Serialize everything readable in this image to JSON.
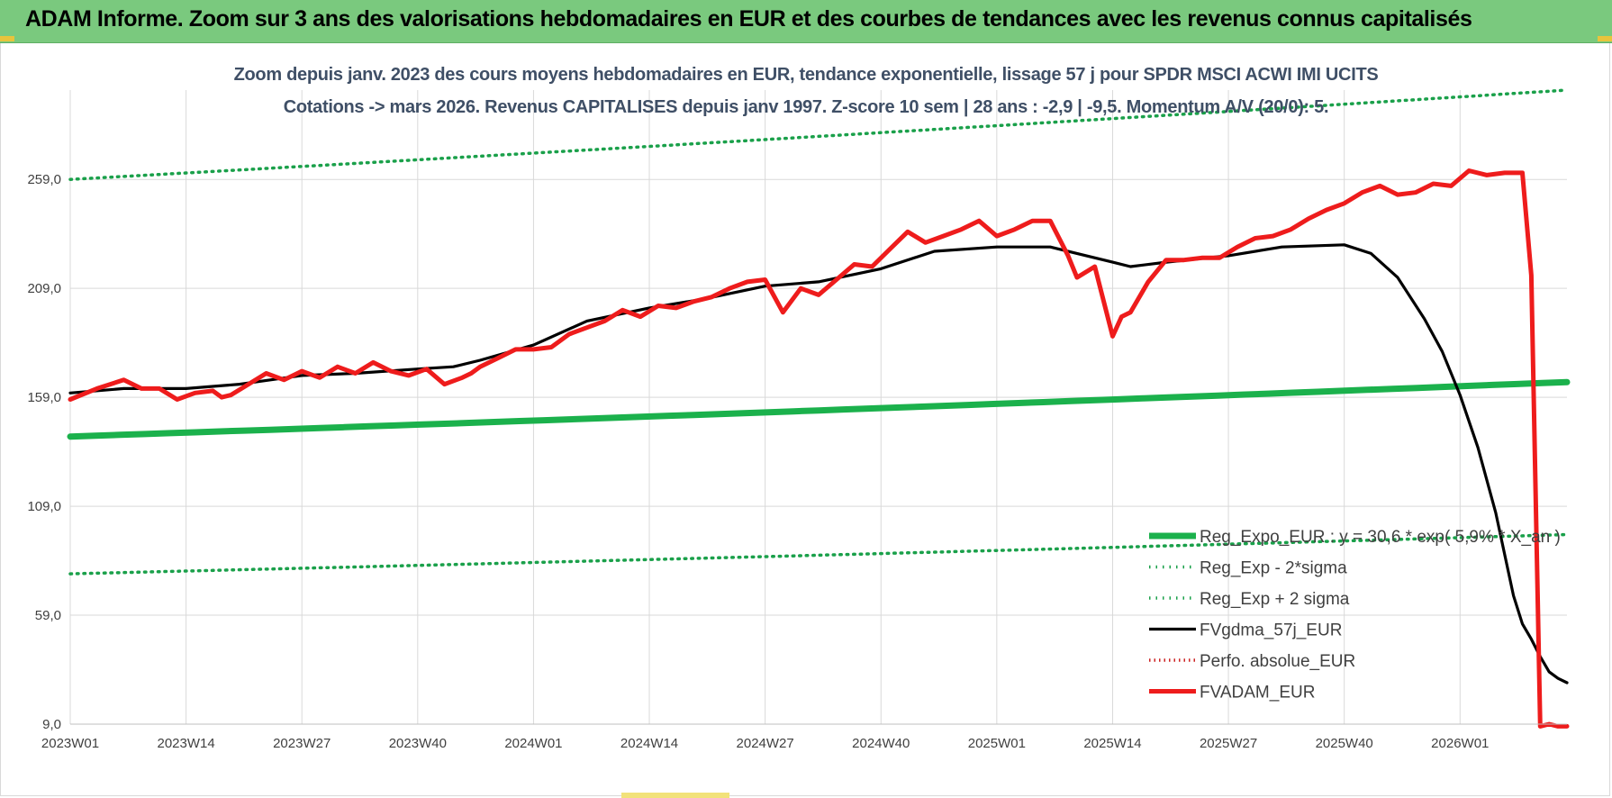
{
  "banner": {
    "title": "ADAM Informe. Zoom sur 3 ans des valorisations hebdomadaires en EUR et des courbes de tendances avec les revenus connus capitalisés"
  },
  "colors": {
    "banner": "#7ac97e",
    "reg_expo": "#1bb14c",
    "bands": "#1aa04a",
    "fvgdma": "#000000",
    "fvadam": "#ee1c1c",
    "perfo": "#cc2222",
    "grid": "#d9d9d9",
    "title_text": "#3f4f66"
  },
  "chart_data": {
    "type": "line",
    "title_line1": "Zoom depuis janv. 2023 des cours moyens hebdomadaires en EUR, tendance exponentielle, lissage 57 j pour SPDR MSCI ACWI IMI UCITS",
    "title_line2": "Cotations -> mars 2026. Revenus CAPITALISES depuis janv 1997. Z-score 10 sem | 28 ans : -2,9 | -9,5. Momentum A/V (20/0): 5.",
    "x_tick_labels": [
      "2023W01",
      "2023W14",
      "2023W27",
      "2023W40",
      "2024W01",
      "2024W14",
      "2024W27",
      "2024W40",
      "2025W01",
      "2025W14",
      "2025W27",
      "2025W40",
      "2026W01"
    ],
    "x_tick_index": [
      0,
      13,
      26,
      39,
      52,
      65,
      78,
      91,
      104,
      117,
      130,
      143,
      156
    ],
    "x_range": [
      0,
      168
    ],
    "y_tick_values": [
      9,
      59,
      109,
      159,
      209,
      259
    ],
    "y_tick_labels": [
      "9,0",
      "59,0",
      "109,0",
      "159,0",
      "209,0",
      "259,0"
    ],
    "ylim": [
      9,
      300
    ],
    "grid": true,
    "legend_position": "bottom-right",
    "series": [
      {
        "name": "Reg_Expo_EUR : y = 30,6 * exp( 5,9% * X_an )",
        "style": "solid-thick",
        "x": [
          0,
          168
        ],
        "y": [
          141,
          166
        ]
      },
      {
        "name": "Reg_Exp - 2*sigma",
        "style": "dotted",
        "x": [
          0,
          168
        ],
        "y": [
          78,
          96
        ]
      },
      {
        "name": "Reg_Exp + 2 sigma",
        "style": "dotted",
        "x": [
          0,
          168
        ],
        "y": [
          259,
          300
        ]
      },
      {
        "name": "FVgdma_57j_EUR",
        "style": "solid",
        "x": [
          0,
          6,
          13,
          19,
          26,
          32,
          39,
          43,
          46,
          52,
          58,
          65,
          71,
          78,
          84,
          91,
          97,
          104,
          110,
          113,
          117,
          119,
          123,
          130,
          136,
          143,
          146,
          149,
          152,
          154,
          156,
          158,
          160,
          162,
          163,
          164,
          165,
          166,
          167,
          168
        ],
        "y": [
          161,
          163,
          163,
          165,
          169,
          170,
          172,
          173,
          176,
          183,
          194,
          200,
          204,
          210,
          212,
          218,
          226,
          228,
          228,
          225,
          221,
          219,
          221,
          224,
          228,
          229,
          225,
          214,
          195,
          180,
          160,
          136,
          106,
          68,
          55,
          48,
          40,
          33,
          30,
          28
        ]
      },
      {
        "name": "Perfo. absolue_EUR",
        "style": "dotted",
        "x": [],
        "y": []
      },
      {
        "name": "FVADAM_EUR",
        "style": "solid-thick",
        "x": [
          0,
          3,
          6,
          8,
          10,
          12,
          14,
          16,
          17,
          18,
          20,
          22,
          24,
          26,
          28,
          30,
          32,
          34,
          36,
          38,
          40,
          42,
          44,
          45,
          46,
          48,
          50,
          52,
          54,
          56,
          58,
          60,
          62,
          64,
          66,
          68,
          70,
          72,
          74,
          76,
          78,
          80,
          82,
          84,
          86,
          88,
          90,
          92,
          94,
          96,
          98,
          100,
          102,
          104,
          106,
          108,
          110,
          112,
          113,
          115,
          117,
          118,
          119,
          121,
          123,
          125,
          127,
          129,
          131,
          133,
          135,
          137,
          139,
          141,
          143,
          145,
          147,
          149,
          151,
          153,
          155,
          157,
          159,
          161,
          163,
          164,
          165,
          166,
          167,
          168
        ],
        "y": [
          158,
          163,
          167,
          163,
          163,
          158,
          161,
          162,
          159,
          160,
          165,
          170,
          167,
          171,
          168,
          173,
          170,
          175,
          171,
          169,
          172,
          165,
          168,
          170,
          173,
          177,
          181,
          181,
          182,
          188,
          191,
          194,
          199,
          196,
          201,
          200,
          203,
          205,
          209,
          212,
          213,
          198,
          209,
          206,
          213,
          220,
          219,
          227,
          235,
          230,
          233,
          236,
          240,
          233,
          236,
          240,
          240,
          224,
          214,
          219,
          187,
          196,
          198,
          212,
          222,
          222,
          223,
          223,
          228,
          232,
          233,
          236,
          241,
          245,
          248,
          253,
          256,
          252,
          253,
          257,
          256,
          263,
          261,
          262,
          262,
          215,
          8,
          9,
          8,
          8
        ]
      }
    ]
  }
}
